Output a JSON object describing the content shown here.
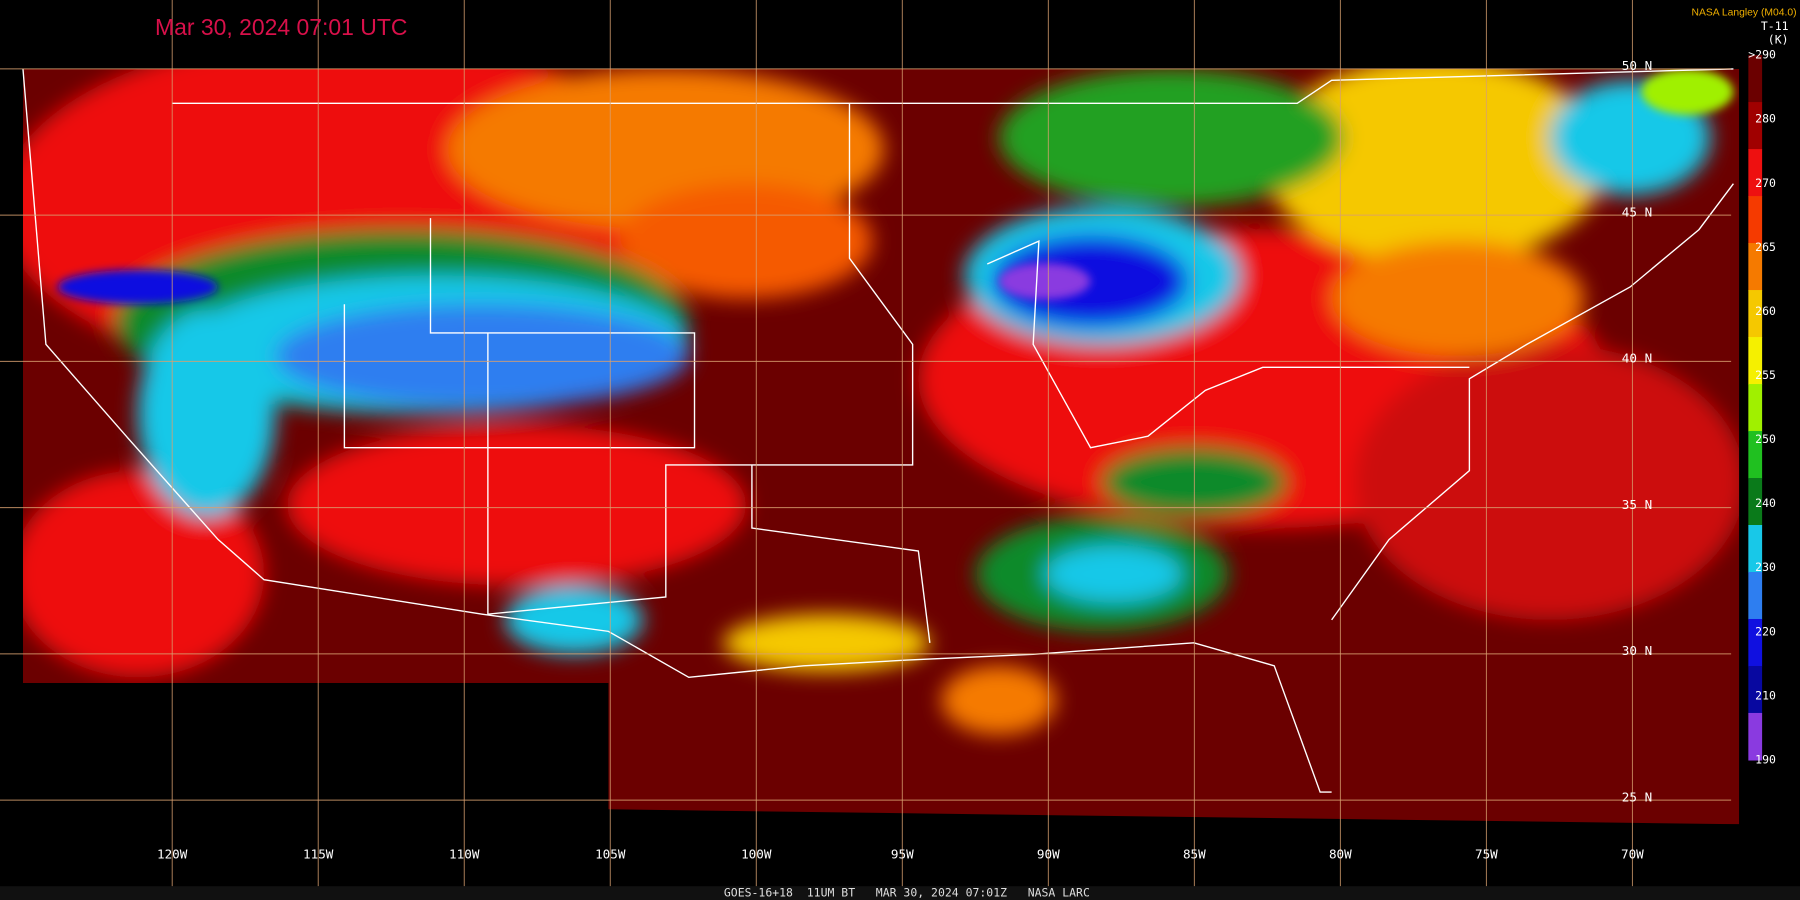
{
  "header": {
    "timestamp": "Mar 30, 2024 07:01 UTC",
    "credit": "NASA Langley (M04.0)"
  },
  "colorbar": {
    "title": "T-11",
    "unit": "(K)",
    "labels": [
      ">290",
      "280",
      "270",
      "265",
      "260",
      "255",
      "250",
      "240",
      "230",
      "220",
      "210",
      "190"
    ]
  },
  "latitude_labels": [
    "50 N",
    "45 N",
    "40 N",
    "35 N",
    "30 N",
    "25 N"
  ],
  "longitude_labels": [
    "120W",
    "115W",
    "110W",
    "105W",
    "100W",
    "95W",
    "90W",
    "85W",
    "80W",
    "75W",
    "70W"
  ],
  "footer": "GOES-16+18  11UM BT   MAR 30, 2024 07:01Z   NASA LARC"
}
